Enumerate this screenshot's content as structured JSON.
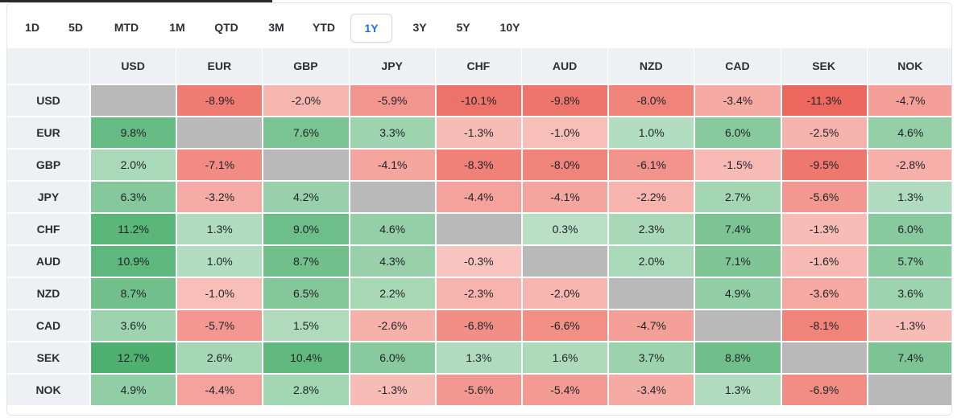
{
  "periods": {
    "items": [
      "1D",
      "5D",
      "MTD",
      "1M",
      "QTD",
      "3M",
      "YTD",
      "1Y",
      "3Y",
      "5Y",
      "10Y"
    ],
    "active": "1Y"
  },
  "currencies": [
    "USD",
    "EUR",
    "GBP",
    "JPY",
    "CHF",
    "AUD",
    "NZD",
    "CAD",
    "SEK",
    "NOK"
  ],
  "rows": [
    {
      "label": "USD",
      "values": [
        null,
        -8.9,
        -2.0,
        -5.9,
        -10.1,
        -9.8,
        -8.0,
        -3.4,
        -11.3,
        -4.7
      ],
      "display": [
        "",
        "-8.9%",
        "-2.0%",
        "-5.9%",
        "-10.1%",
        "-9.8%",
        "-8.0%",
        "-3.4%",
        "-11.3%",
        "-4.7%"
      ]
    },
    {
      "label": "EUR",
      "values": [
        9.8,
        null,
        7.6,
        3.3,
        -1.3,
        -1.0,
        1.0,
        6.0,
        -2.5,
        4.6
      ],
      "display": [
        "9.8%",
        "",
        "7.6%",
        "3.3%",
        "-1.3%",
        "-1.0%",
        "1.0%",
        "6.0%",
        "-2.5%",
        "4.6%"
      ]
    },
    {
      "label": "GBP",
      "values": [
        2.0,
        -7.1,
        null,
        -4.1,
        -8.3,
        -8.0,
        -6.1,
        -1.5,
        -9.5,
        -2.8
      ],
      "display": [
        "2.0%",
        "-7.1%",
        "",
        "-4.1%",
        "-8.3%",
        "-8.0%",
        "-6.1%",
        "-1.5%",
        "-9.5%",
        "-2.8%"
      ]
    },
    {
      "label": "JPY",
      "values": [
        6.3,
        -3.2,
        4.2,
        null,
        -4.4,
        -4.1,
        -2.2,
        2.7,
        -5.6,
        1.3
      ],
      "display": [
        "6.3%",
        "-3.2%",
        "4.2%",
        "",
        "-4.4%",
        "-4.1%",
        "-2.2%",
        "2.7%",
        "-5.6%",
        "1.3%"
      ]
    },
    {
      "label": "CHF",
      "values": [
        11.2,
        1.3,
        9.0,
        4.6,
        null,
        0.3,
        2.3,
        7.4,
        -1.3,
        6.0
      ],
      "display": [
        "11.2%",
        "1.3%",
        "9.0%",
        "4.6%",
        "",
        "0.3%",
        "2.3%",
        "7.4%",
        "-1.3%",
        "6.0%"
      ]
    },
    {
      "label": "AUD",
      "values": [
        10.9,
        1.0,
        8.7,
        4.3,
        -0.3,
        null,
        2.0,
        7.1,
        -1.6,
        5.7
      ],
      "display": [
        "10.9%",
        "1.0%",
        "8.7%",
        "4.3%",
        "-0.3%",
        "",
        "2.0%",
        "7.1%",
        "-1.6%",
        "5.7%"
      ]
    },
    {
      "label": "NZD",
      "values": [
        8.7,
        -1.0,
        6.5,
        2.2,
        -2.3,
        -2.0,
        null,
        4.9,
        -3.6,
        3.6
      ],
      "display": [
        "8.7%",
        "-1.0%",
        "6.5%",
        "2.2%",
        "-2.3%",
        "-2.0%",
        "",
        "4.9%",
        "-3.6%",
        "3.6%"
      ]
    },
    {
      "label": "CAD",
      "values": [
        3.6,
        -5.7,
        1.5,
        -2.6,
        -6.8,
        -6.6,
        -4.7,
        null,
        -8.1,
        -1.3
      ],
      "display": [
        "3.6%",
        "-5.7%",
        "1.5%",
        "-2.6%",
        "-6.8%",
        "-6.6%",
        "-4.7%",
        "",
        "-8.1%",
        "-1.3%"
      ]
    },
    {
      "label": "SEK",
      "values": [
        12.7,
        2.6,
        10.4,
        6.0,
        1.3,
        1.6,
        3.7,
        8.8,
        null,
        7.4
      ],
      "display": [
        "12.7%",
        "2.6%",
        "10.4%",
        "6.0%",
        "1.3%",
        "1.6%",
        "3.7%",
        "8.8%",
        "",
        "7.4%"
      ]
    },
    {
      "label": "NOK",
      "values": [
        4.9,
        -4.4,
        2.8,
        -1.3,
        -5.6,
        -5.4,
        -3.4,
        1.3,
        -6.9,
        null
      ],
      "display": [
        "4.9%",
        "-4.4%",
        "2.8%",
        "-1.3%",
        "-5.6%",
        "-5.4%",
        "-3.4%",
        "1.3%",
        "-6.9%",
        ""
      ]
    }
  ],
  "colors": {
    "accent": "#1a73e8",
    "diagonal": "#b9b9b9",
    "positive": "#4caf6e",
    "negative": "#ea5a4f"
  }
}
